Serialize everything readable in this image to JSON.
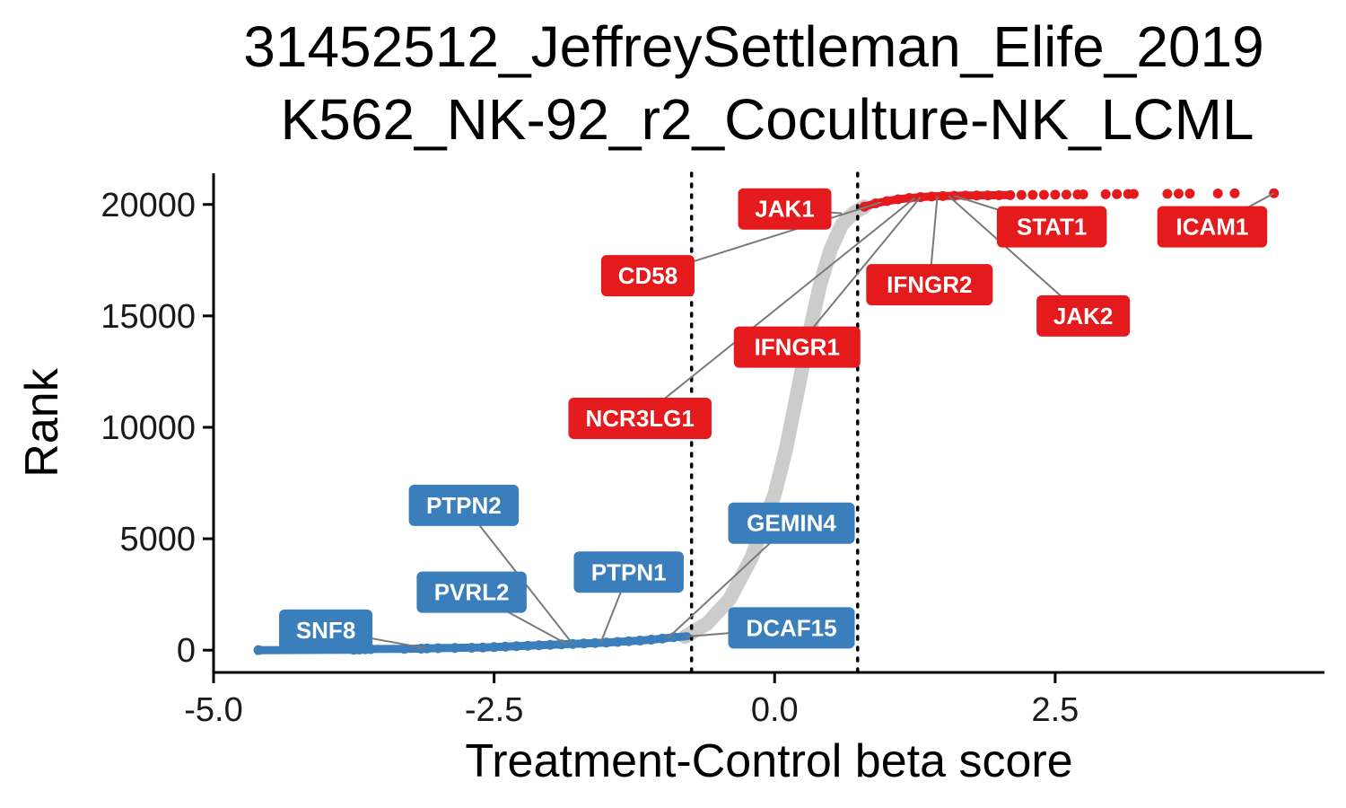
{
  "chart_data": {
    "type": "scatter",
    "title_lines": [
      "31452512_JeffreySettleman_Elife_2019",
      "K562_NK-92_r2_Coculture-NK_LCML"
    ],
    "xlabel": "Treatment-Control beta score",
    "ylabel": "Rank",
    "xlim": [
      -5.0,
      4.9
    ],
    "ylim": [
      -1000,
      21400
    ],
    "x_ticks": [
      {
        "value": -5.0,
        "label": "-5.0"
      },
      {
        "value": -2.5,
        "label": "-2.5"
      },
      {
        "value": 0.0,
        "label": "0.0"
      },
      {
        "value": 2.5,
        "label": "2.5"
      }
    ],
    "y_ticks": [
      {
        "value": 0,
        "label": "0"
      },
      {
        "value": 5000,
        "label": "5000"
      },
      {
        "value": 10000,
        "label": "10000"
      },
      {
        "value": 15000,
        "label": "15000"
      },
      {
        "value": 20000,
        "label": "20000"
      }
    ],
    "thresholds": [
      -0.74,
      0.74
    ],
    "grid": false,
    "legend": "none",
    "colors": {
      "negative": "#3a7ebb",
      "positive": "#e41a1c",
      "neutral": "#cccccc",
      "connector": "#7a7a7a",
      "threshold": "#000000"
    },
    "curve": [
      [
        -0.8,
        600
      ],
      [
        -0.6,
        1200
      ],
      [
        -0.4,
        2300
      ],
      [
        -0.2,
        4200
      ],
      [
        0.0,
        7000
      ],
      [
        0.1,
        9000
      ],
      [
        0.2,
        11500
      ],
      [
        0.3,
        14000
      ],
      [
        0.4,
        16300
      ],
      [
        0.5,
        18000
      ],
      [
        0.6,
        19100
      ],
      [
        0.7,
        19600
      ],
      [
        0.8,
        19900
      ]
    ],
    "negative_tail": [
      [
        -4.6,
        0
      ],
      [
        -3.75,
        20
      ],
      [
        -3.7,
        30
      ],
      [
        -3.65,
        40
      ],
      [
        -3.6,
        50
      ],
      [
        -3.3,
        60
      ],
      [
        -3.15,
        70
      ],
      [
        -3.1,
        80
      ],
      [
        -3.0,
        90
      ],
      [
        -2.85,
        100
      ],
      [
        -2.7,
        110
      ],
      [
        -2.6,
        120
      ],
      [
        -2.5,
        140
      ],
      [
        -2.4,
        160
      ],
      [
        -2.3,
        180
      ],
      [
        -2.2,
        200
      ],
      [
        -2.1,
        220
      ],
      [
        -2.0,
        240
      ],
      [
        -1.9,
        260
      ],
      [
        -1.8,
        280
      ],
      [
        -1.7,
        300
      ],
      [
        -1.6,
        320
      ],
      [
        -1.5,
        340
      ],
      [
        -1.4,
        370
      ],
      [
        -1.3,
        400
      ],
      [
        -1.2,
        430
      ],
      [
        -1.1,
        470
      ],
      [
        -1.0,
        520
      ],
      [
        -0.9,
        580
      ]
    ],
    "positive_tail": [
      [
        0.8,
        19900
      ],
      [
        0.9,
        20050
      ],
      [
        1.0,
        20150
      ],
      [
        1.1,
        20230
      ],
      [
        1.2,
        20290
      ],
      [
        1.3,
        20330
      ],
      [
        1.4,
        20360
      ],
      [
        1.5,
        20380
      ],
      [
        1.6,
        20390
      ],
      [
        1.7,
        20400
      ],
      [
        1.8,
        20405
      ],
      [
        1.9,
        20410
      ],
      [
        2.0,
        20415
      ],
      [
        2.1,
        20420
      ],
      [
        2.2,
        20425
      ],
      [
        2.3,
        20430
      ],
      [
        2.4,
        20435
      ],
      [
        2.5,
        20440
      ],
      [
        2.6,
        20445
      ],
      [
        2.7,
        20450
      ],
      [
        2.75,
        20455
      ],
      [
        2.95,
        20460
      ],
      [
        3.05,
        20465
      ],
      [
        3.15,
        20470
      ],
      [
        3.2,
        20475
      ],
      [
        3.5,
        20480
      ],
      [
        3.6,
        20485
      ],
      [
        3.7,
        20490
      ],
      [
        3.95,
        20495
      ],
      [
        4.1,
        20500
      ],
      [
        4.45,
        20505
      ]
    ],
    "labels": [
      {
        "text": "JAK1",
        "color": "positive",
        "point": [
          0.6,
          19600
        ],
        "box": [
          0.09,
          19800
        ]
      },
      {
        "text": "CD58",
        "color": "positive",
        "point": [
          0.95,
          20100
        ],
        "box": [
          -1.13,
          16800
        ]
      },
      {
        "text": "STAT1",
        "color": "positive",
        "point": [
          1.6,
          20390
        ],
        "box": [
          2.47,
          19000
        ]
      },
      {
        "text": "ICAM1",
        "color": "positive",
        "point": [
          4.45,
          20505
        ],
        "box": [
          3.9,
          19000
        ]
      },
      {
        "text": "IFNGR2",
        "color": "positive",
        "point": [
          1.45,
          20370
        ],
        "box": [
          1.38,
          16400
        ]
      },
      {
        "text": "JAK2",
        "color": "positive",
        "point": [
          1.55,
          20385
        ],
        "box": [
          2.75,
          15000
        ]
      },
      {
        "text": "IFNGR1",
        "color": "positive",
        "point": [
          1.3,
          20330
        ],
        "box": [
          0.2,
          13600
        ]
      },
      {
        "text": "NCR3LG1",
        "color": "positive",
        "point": [
          1.25,
          20300
        ],
        "box": [
          -1.2,
          10400
        ]
      },
      {
        "text": "PTPN2",
        "color": "negative",
        "point": [
          -1.8,
          280
        ],
        "box": [
          -2.77,
          6500
        ]
      },
      {
        "text": "PVRL2",
        "color": "negative",
        "point": [
          -1.85,
          270
        ],
        "box": [
          -2.7,
          2600
        ]
      },
      {
        "text": "PTPN1",
        "color": "negative",
        "point": [
          -1.55,
          330
        ],
        "box": [
          -1.3,
          3500
        ]
      },
      {
        "text": "GEMIN4",
        "color": "negative",
        "point": [
          -0.95,
          550
        ],
        "box": [
          0.15,
          5700
        ]
      },
      {
        "text": "SNF8",
        "color": "negative",
        "point": [
          -3.1,
          80
        ],
        "box": [
          -4.0,
          900
        ]
      },
      {
        "text": "DCAF15",
        "color": "negative",
        "point": [
          -0.8,
          600
        ],
        "box": [
          0.15,
          1000
        ]
      }
    ]
  }
}
